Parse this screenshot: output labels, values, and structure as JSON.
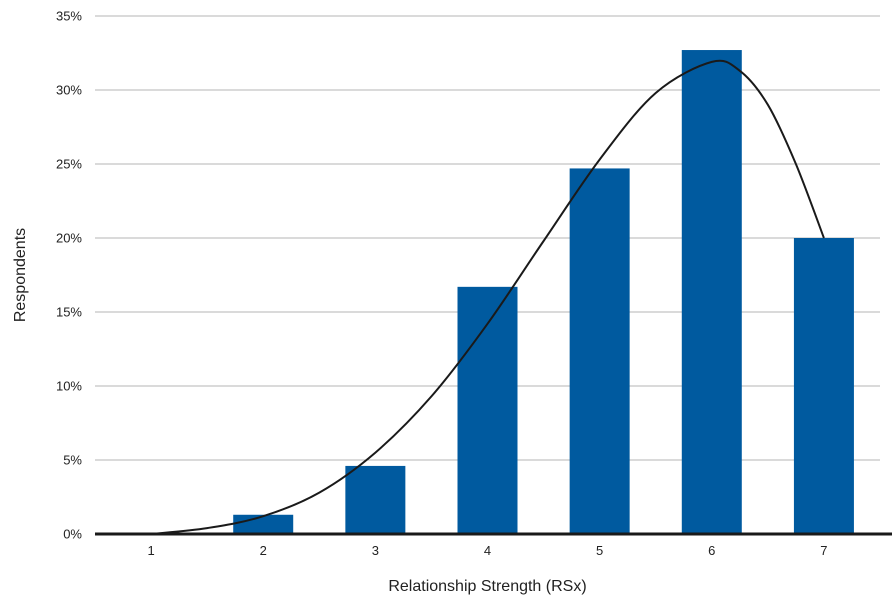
{
  "chart_data": {
    "type": "bar",
    "xlabel": "Relationship Strength (RSx)",
    "ylabel": "Respondents",
    "categories": [
      "1",
      "2",
      "3",
      "4",
      "5",
      "6",
      "7"
    ],
    "series": [
      {
        "values": [
          0,
          1.3,
          4.6,
          16.7,
          24.7,
          32.7,
          20.0
        ]
      }
    ],
    "trend_line": {
      "x": [
        1,
        1.5,
        2,
        2.5,
        3,
        3.5,
        4,
        4.5,
        5,
        5.5,
        6,
        6.25,
        6.5,
        6.75,
        7
      ],
      "y": [
        0,
        0.4,
        1.2,
        2.8,
        5.5,
        9.3,
        14.2,
        19.8,
        25.3,
        29.8,
        31.9,
        31.3,
        29.0,
        25.0,
        20.0
      ]
    },
    "ylim": [
      0,
      35
    ],
    "y_ticks": [
      {
        "value": 0,
        "label": "0%"
      },
      {
        "value": 5,
        "label": "5%"
      },
      {
        "value": 10,
        "label": "10%"
      },
      {
        "value": 15,
        "label": "15%"
      },
      {
        "value": 20,
        "label": "20%"
      },
      {
        "value": 25,
        "label": "25%"
      },
      {
        "value": 30,
        "label": "30%"
      },
      {
        "value": 35,
        "label": "35%"
      }
    ],
    "grid": true,
    "legend": "none",
    "colors": {
      "bar": "#005a9f",
      "line": "#1a1a1a",
      "grid": "#b5b5b5",
      "axis": "#1a1a1a"
    }
  }
}
